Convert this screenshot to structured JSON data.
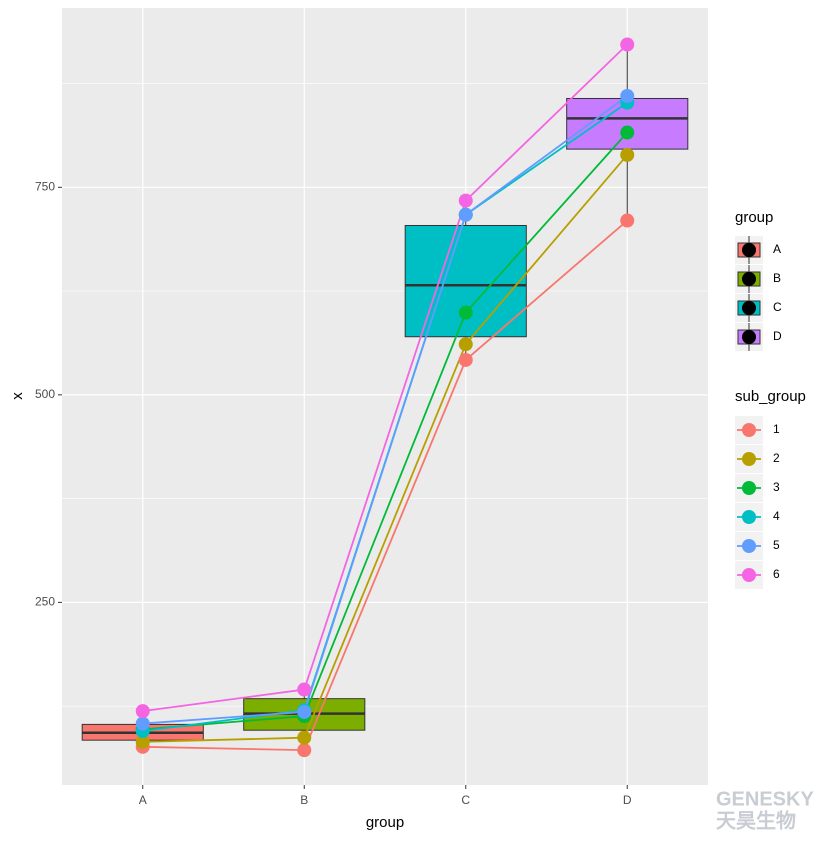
{
  "chart_data": {
    "type": "boxplot-lines",
    "x_label": "group",
    "y_label": "x",
    "categories": [
      "A",
      "B",
      "C",
      "D"
    ],
    "ylim": [
      30,
      966
    ],
    "yticks": [
      250,
      500,
      750
    ],
    "minor_yticks": [
      125,
      375,
      625,
      875
    ],
    "grid": true,
    "boxes": [
      {
        "color": "#F8766D",
        "min": 76,
        "q1": 84,
        "median": 93,
        "q3": 103,
        "max": 119
      },
      {
        "color": "#7CAE00",
        "min": 72,
        "q1": 96,
        "median": 116,
        "q3": 134,
        "max": 145
      },
      {
        "color": "#00BFC4",
        "min": 542,
        "q1": 570,
        "median": 632,
        "q3": 704,
        "max": 734
      },
      {
        "color": "#C77CFF",
        "min": 710,
        "q1": 796,
        "median": 833,
        "q3": 857,
        "max": 922
      }
    ],
    "box_legend_title": "group",
    "series_legend_title": "sub_group",
    "series": [
      {
        "name": "1",
        "color": "#F8766D",
        "values": [
          76,
          72,
          542,
          710
        ]
      },
      {
        "name": "2",
        "color": "#B79F00",
        "values": [
          82,
          87,
          561,
          789
        ]
      },
      {
        "name": "3",
        "color": "#00BA38",
        "values": [
          97,
          113,
          599,
          816
        ]
      },
      {
        "name": "4",
        "color": "#00BFC4",
        "values": [
          95,
          120,
          717,
          852
        ]
      },
      {
        "name": "5",
        "color": "#619CFF",
        "values": [
          104,
          118,
          717,
          860
        ]
      },
      {
        "name": "6",
        "color": "#F564E3",
        "values": [
          119,
          145,
          734,
          922
        ]
      }
    ]
  },
  "watermark": {
    "brand": "GENESKY",
    "name": "天昊生物"
  }
}
